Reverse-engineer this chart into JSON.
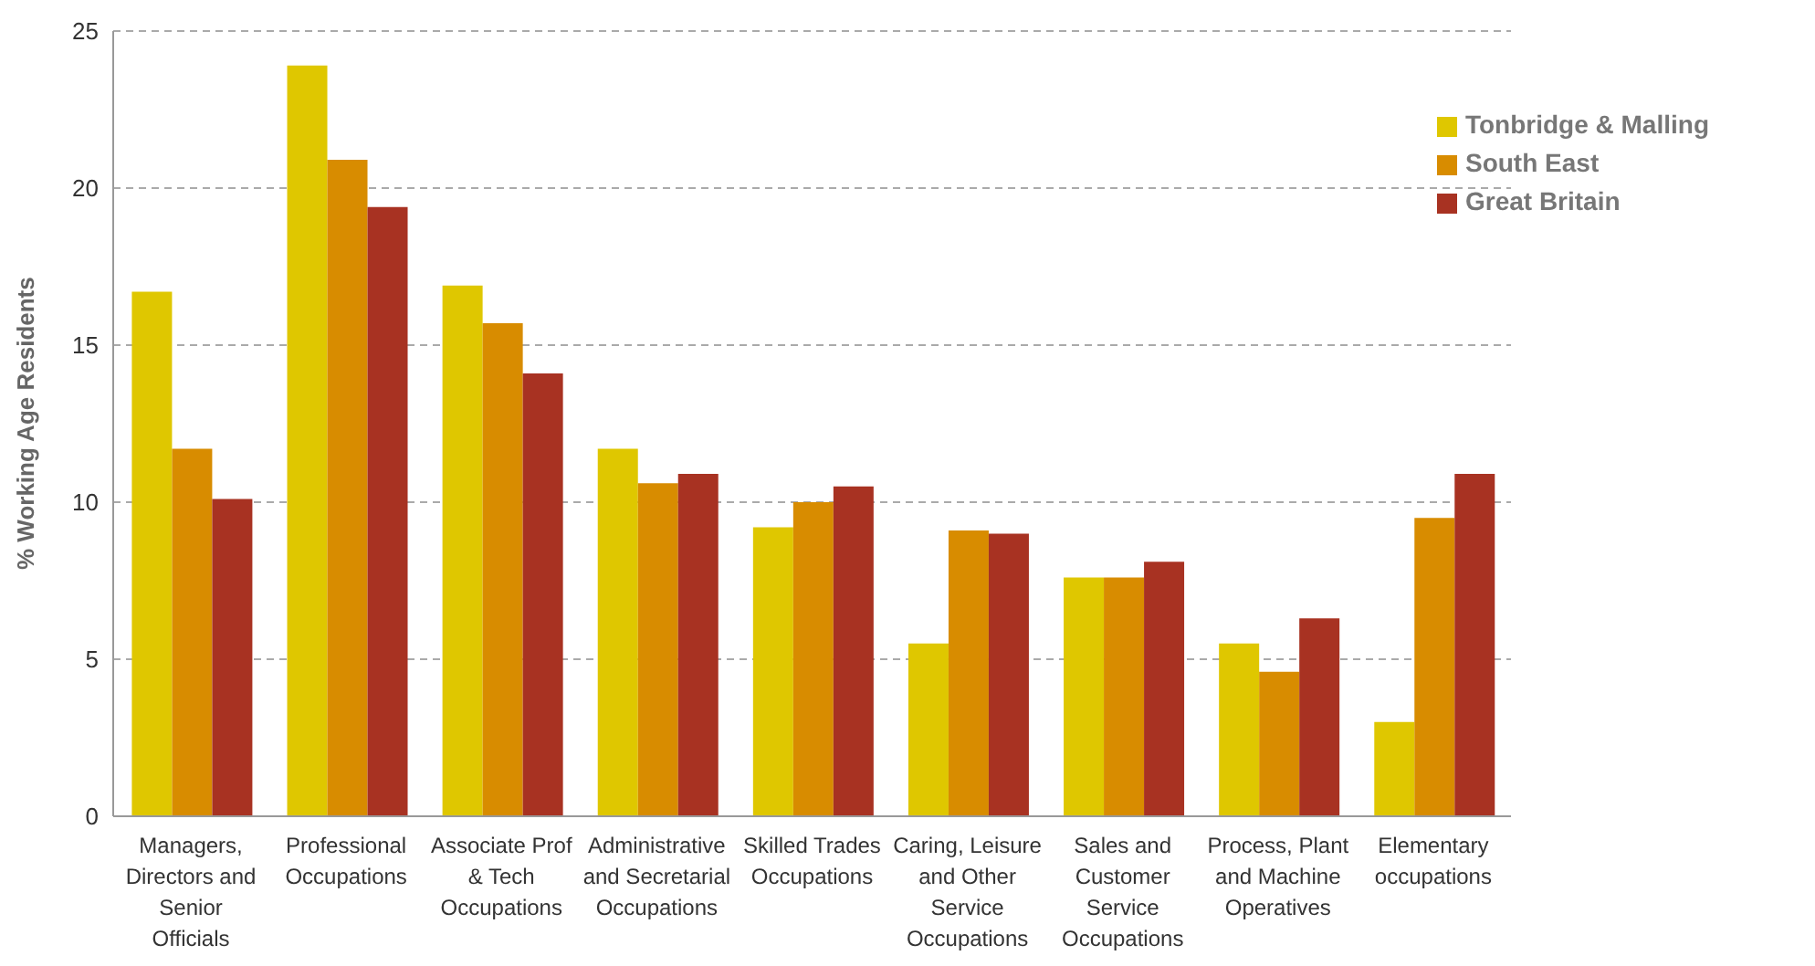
{
  "chart_data": {
    "type": "bar",
    "ylabel": "% Working Age Residents",
    "categories": [
      "Managers, Directors and Senior Officials",
      "Professional Occupations",
      "Associate Prof & Tech Occupations",
      "Administrative and Secretarial Occupations",
      "Skilled Trades Occupations",
      "Caring, Leisure and Other Service Occupations",
      "Sales and Customer Service Occupations",
      "Process, Plant and Machine Operatives",
      "Elementary occupations"
    ],
    "series": [
      {
        "name": "Tonbridge & Malling",
        "color": "#dfc700",
        "values": [
          16.7,
          23.9,
          16.9,
          11.7,
          9.2,
          5.5,
          7.6,
          5.5,
          3.0
        ]
      },
      {
        "name": "South East",
        "color": "#d88c00",
        "values": [
          11.7,
          20.9,
          15.7,
          10.6,
          10.0,
          9.1,
          7.6,
          4.6,
          9.5
        ]
      },
      {
        "name": "Great Britain",
        "color": "#a83222",
        "values": [
          10.1,
          19.4,
          14.1,
          10.9,
          10.5,
          9.0,
          8.1,
          6.3,
          10.9
        ]
      }
    ],
    "ylim": [
      0,
      25
    ],
    "yticks": [
      0,
      5,
      10,
      15,
      20,
      25
    ],
    "grid": "y",
    "legend": "top right"
  }
}
